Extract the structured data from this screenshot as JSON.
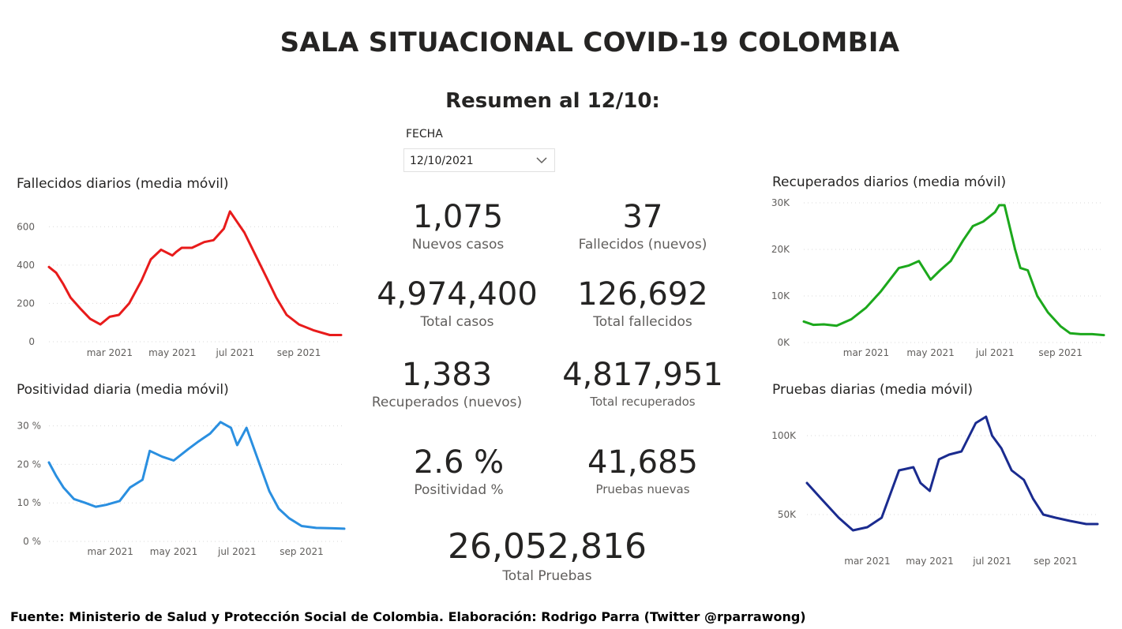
{
  "header": {
    "title": "SALA SITUACIONAL COVID-19 COLOMBIA",
    "subtitle": "Resumen al 12/10:"
  },
  "slicer": {
    "label": "FECHA",
    "value": "12/10/2021"
  },
  "kpis": {
    "nuevos_casos": {
      "value": "1,075",
      "label": "Nuevos casos"
    },
    "fallecidos_nuevos": {
      "value": "37",
      "label": "Fallecidos (nuevos)"
    },
    "total_casos": {
      "value": "4,974,400",
      "label": "Total casos"
    },
    "total_fallecidos": {
      "value": "126,692",
      "label": "Total fallecidos"
    },
    "recuperados_nuevos": {
      "value": "1,383",
      "label": "Recuperados (nuevos)"
    },
    "total_recuperados": {
      "value": "4,817,951",
      "label": "Total recuperados"
    },
    "positividad": {
      "value": "2.6 %",
      "label": "Positividad %"
    },
    "pruebas_nuevas": {
      "value": "41,685",
      "label": "Pruebas nuevas"
    },
    "total_pruebas": {
      "value": "26,052,816",
      "label": "Total Pruebas"
    }
  },
  "chart_data": [
    {
      "id": "fallecidos",
      "type": "line",
      "title": "Fallecidos diarios (media móvil)",
      "color": "#e81b1b",
      "x_ticks": [
        "mar 2021",
        "may 2021",
        "jul 2021",
        "sep 2021"
      ],
      "y_ticks": [
        "0",
        "200",
        "400",
        "600"
      ],
      "ylim": [
        0,
        700
      ],
      "grid": true,
      "series": [
        {
          "x": [
            "2021-01-01",
            "2021-01-08",
            "2021-01-15",
            "2021-01-22",
            "2021-02-01",
            "2021-02-10",
            "2021-02-20",
            "2021-03-01",
            "2021-03-10",
            "2021-03-20",
            "2021-04-01",
            "2021-04-10",
            "2021-04-20",
            "2021-05-01",
            "2021-05-05",
            "2021-05-10",
            "2021-05-20",
            "2021-06-01",
            "2021-06-10",
            "2021-06-20",
            "2021-06-26",
            "2021-07-01",
            "2021-07-10",
            "2021-07-20",
            "2021-08-01",
            "2021-08-10",
            "2021-08-20",
            "2021-09-01",
            "2021-09-15",
            "2021-10-01",
            "2021-10-12"
          ],
          "values": [
            390,
            360,
            300,
            230,
            170,
            120,
            90,
            130,
            140,
            200,
            320,
            430,
            480,
            450,
            470,
            490,
            490,
            520,
            530,
            590,
            680,
            640,
            570,
            460,
            330,
            230,
            140,
            90,
            60,
            35,
            35
          ]
        }
      ]
    },
    {
      "id": "positividad",
      "type": "line",
      "title": "Positividad diaria (media móvil)",
      "color": "#2a8fe0",
      "x_ticks": [
        "mar 2021",
        "may 2021",
        "jul 2021",
        "sep 2021"
      ],
      "y_ticks": [
        "0 %",
        "10 %",
        "20 %",
        "30 %"
      ],
      "ylim": [
        0,
        33
      ],
      "grid": true,
      "series": [
        {
          "x": [
            "2021-01-01",
            "2021-01-08",
            "2021-01-15",
            "2021-01-25",
            "2021-02-05",
            "2021-02-15",
            "2021-02-25",
            "2021-03-10",
            "2021-03-20",
            "2021-04-01",
            "2021-04-08",
            "2021-04-20",
            "2021-05-01",
            "2021-05-15",
            "2021-05-25",
            "2021-06-05",
            "2021-06-15",
            "2021-06-25",
            "2021-07-01",
            "2021-07-10",
            "2021-07-20",
            "2021-08-01",
            "2021-08-10",
            "2021-08-20",
            "2021-09-01",
            "2021-09-15",
            "2021-10-01",
            "2021-10-12"
          ],
          "values": [
            20.5,
            17,
            14,
            11,
            10,
            9,
            9.5,
            10.5,
            14,
            16,
            23.5,
            22,
            21,
            24,
            26,
            28,
            31,
            29.5,
            25,
            29.5,
            22,
            13,
            8.5,
            6,
            4,
            3.5,
            3.4,
            3.3
          ]
        }
      ]
    },
    {
      "id": "recuperados",
      "type": "line",
      "title": "Recuperados diarios (media móvil)",
      "color": "#1ca81c",
      "x_ticks": [
        "mar 2021",
        "may 2021",
        "jul 2021",
        "sep 2021"
      ],
      "y_ticks": [
        "0K",
        "10K",
        "20K",
        "30K"
      ],
      "ylim": [
        0,
        30000
      ],
      "grid": true,
      "series": [
        {
          "x": [
            "2021-01-01",
            "2021-01-10",
            "2021-01-20",
            "2021-02-01",
            "2021-02-15",
            "2021-03-01",
            "2021-03-15",
            "2021-04-01",
            "2021-04-10",
            "2021-04-20",
            "2021-05-01",
            "2021-05-10",
            "2021-05-20",
            "2021-06-01",
            "2021-06-10",
            "2021-06-20",
            "2021-07-01",
            "2021-07-05",
            "2021-07-10",
            "2021-07-20",
            "2021-07-25",
            "2021-08-01",
            "2021-08-10",
            "2021-08-20",
            "2021-09-01",
            "2021-09-10",
            "2021-09-20",
            "2021-10-01",
            "2021-10-12"
          ],
          "values": [
            4500,
            3800,
            3900,
            3600,
            5000,
            7500,
            11000,
            16000,
            16500,
            17500,
            13500,
            15500,
            17500,
            22000,
            25000,
            26000,
            28000,
            29500,
            29500,
            20000,
            16000,
            15500,
            10000,
            6500,
            3500,
            2000,
            1800,
            1800,
            1600
          ]
        }
      ]
    },
    {
      "id": "pruebas",
      "type": "line",
      "title": "Pruebas diarias (media móvil)",
      "color": "#1a2b8f",
      "x_ticks": [
        "mar 2021",
        "may 2021",
        "jul 2021",
        "sep 2021"
      ],
      "y_ticks": [
        "50K",
        "100K"
      ],
      "ylim": [
        30000,
        115000
      ],
      "grid": true,
      "series": [
        {
          "x": [
            "2021-01-01",
            "2021-01-15",
            "2021-02-01",
            "2021-02-15",
            "2021-03-01",
            "2021-03-15",
            "2021-04-01",
            "2021-04-15",
            "2021-04-22",
            "2021-05-01",
            "2021-05-10",
            "2021-05-20",
            "2021-06-01",
            "2021-06-15",
            "2021-06-25",
            "2021-07-01",
            "2021-07-10",
            "2021-07-20",
            "2021-08-01",
            "2021-08-10",
            "2021-08-20",
            "2021-09-01",
            "2021-09-15",
            "2021-10-01",
            "2021-10-12"
          ],
          "values": [
            70000,
            60000,
            48000,
            40000,
            42000,
            48000,
            78000,
            80000,
            70000,
            65000,
            85000,
            88000,
            90000,
            108000,
            112000,
            100000,
            92000,
            78000,
            72000,
            60000,
            50000,
            48000,
            46000,
            44000,
            44000
          ]
        }
      ]
    }
  ],
  "footer": "Fuente: Ministerio de Salud y Protección Social de Colombia. Elaboración: Rodrigo Parra (Twitter @rparrawong)"
}
